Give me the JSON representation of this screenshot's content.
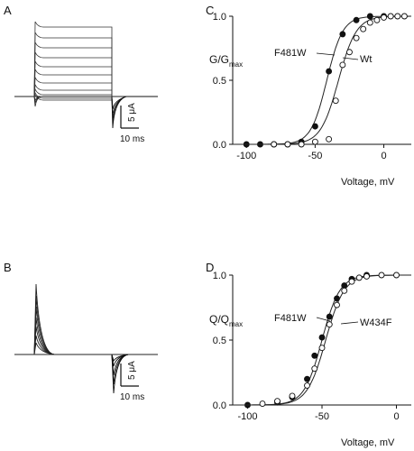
{
  "panels": {
    "A": {
      "label": "A",
      "scale_current": "5 μA",
      "scale_time": "10 ms"
    },
    "B": {
      "label": "B",
      "scale_current": "5 μA",
      "scale_time": "10 ms"
    },
    "C": {
      "label": "C"
    },
    "D": {
      "label": "D"
    }
  },
  "chart_data": [
    {
      "panel": "C",
      "type": "scatter",
      "ylabel_main": "G/G",
      "ylabel_sub": "max",
      "xlabel": "Voltage, mV",
      "xlim": [
        -110,
        20
      ],
      "ylim": [
        0,
        1.0
      ],
      "xticks": [
        -100,
        -50,
        0
      ],
      "yticks": [
        0.0,
        0.5,
        1.0
      ],
      "ytick_labels": [
        "0.0",
        "0.5",
        "1.0"
      ],
      "fit_curves": true,
      "series": [
        {
          "name": "F481W",
          "marker": "filled",
          "x": [
            -100,
            -90,
            -80,
            -70,
            -60,
            -50,
            -40,
            -30,
            -20,
            -10,
            0
          ],
          "y": [
            0.0,
            0.0,
            0.0,
            0.0,
            0.02,
            0.14,
            0.57,
            0.86,
            0.97,
            1.0,
            1.0
          ],
          "v_half": -41.5,
          "slope": 5.8
        },
        {
          "name": "Wt",
          "marker": "open",
          "x": [
            -80,
            -70,
            -60,
            -50,
            -40,
            -35,
            -30,
            -25,
            -20,
            -15,
            -10,
            -5,
            0,
            5,
            10,
            15
          ],
          "y": [
            0.0,
            0.0,
            0.0,
            0.02,
            0.04,
            0.34,
            0.62,
            0.72,
            0.83,
            0.9,
            0.95,
            0.97,
            0.99,
            1.0,
            1.0,
            1.0
          ],
          "v_half": -33.0,
          "slope": 6.5
        }
      ]
    },
    {
      "panel": "D",
      "type": "scatter",
      "ylabel_main": "Q/Q",
      "ylabel_sub": "max",
      "xlabel": "Voltage, mV",
      "xlim": [
        -110,
        10
      ],
      "ylim": [
        0,
        1.0
      ],
      "xticks": [
        -100,
        -50,
        0
      ],
      "yticks": [
        0.0,
        0.5,
        1.0
      ],
      "ytick_labels": [
        "0.0",
        "0.5",
        "1.0"
      ],
      "fit_curves": true,
      "series": [
        {
          "name": "F481W",
          "marker": "filled",
          "x": [
            -100,
            -80,
            -70,
            -60,
            -55,
            -50,
            -45,
            -40,
            -35,
            -30,
            -20
          ],
          "y": [
            0.0,
            0.02,
            0.06,
            0.2,
            0.38,
            0.52,
            0.68,
            0.82,
            0.92,
            0.97,
            1.0
          ],
          "v_half": -50.0,
          "slope": 6.0
        },
        {
          "name": "W434F",
          "marker": "open",
          "x": [
            -90,
            -80,
            -70,
            -60,
            -55,
            -50,
            -45,
            -40,
            -35,
            -30,
            -25,
            -20,
            -10,
            0
          ],
          "y": [
            0.01,
            0.03,
            0.07,
            0.15,
            0.28,
            0.44,
            0.62,
            0.77,
            0.88,
            0.95,
            0.98,
            0.99,
            1.0,
            1.0
          ],
          "v_half": -47.5,
          "slope": 6.2
        }
      ]
    }
  ]
}
